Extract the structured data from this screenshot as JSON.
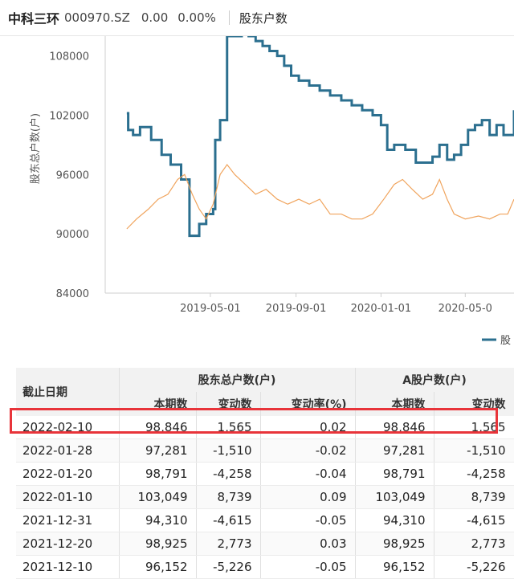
{
  "header": {
    "stock_name": "中科三环",
    "stock_code": "000970.SZ",
    "price": "0.00",
    "change_pct": "0.00%",
    "tab": "股东户数"
  },
  "chart_data": {
    "type": "line",
    "ylabel": "股东总户数(户)",
    "yticks": [
      "108000",
      "102000",
      "96000",
      "90000",
      "84000"
    ],
    "ylim": [
      84000,
      110000
    ],
    "xticks": [
      "2019-05-01",
      "2019-09-01",
      "2020-01-01",
      "2020-05-0"
    ],
    "legend_partial": "股",
    "series": [
      {
        "name": "",
        "color": "#2b6f8f",
        "points": [
          [
            "2019-01-01",
            102200
          ],
          [
            "2019-01-03",
            100500
          ],
          [
            "2019-01-10",
            100000
          ],
          [
            "2019-01-20",
            100800
          ],
          [
            "2019-02-05",
            99500
          ],
          [
            "2019-02-20",
            98000
          ],
          [
            "2019-03-05",
            97000
          ],
          [
            "2019-03-20",
            95500
          ],
          [
            "2019-04-01",
            89800
          ],
          [
            "2019-04-10",
            89800
          ],
          [
            "2019-04-15",
            91000
          ],
          [
            "2019-04-25",
            92000
          ],
          [
            "2019-05-05",
            92500
          ],
          [
            "2019-05-08",
            99500
          ],
          [
            "2019-05-15",
            101500
          ],
          [
            "2019-05-25",
            110000
          ],
          [
            "2019-06-05",
            110000
          ],
          [
            "2019-06-15",
            110500
          ],
          [
            "2019-06-25",
            110000
          ],
          [
            "2019-07-05",
            109500
          ],
          [
            "2019-07-15",
            109000
          ],
          [
            "2019-07-25",
            108500
          ],
          [
            "2019-08-05",
            108000
          ],
          [
            "2019-08-15",
            107000
          ],
          [
            "2019-08-25",
            106000
          ],
          [
            "2019-09-05",
            105500
          ],
          [
            "2019-09-20",
            105000
          ],
          [
            "2019-10-05",
            104500
          ],
          [
            "2019-10-20",
            104000
          ],
          [
            "2019-11-05",
            103500
          ],
          [
            "2019-11-20",
            103000
          ],
          [
            "2019-12-05",
            102500
          ],
          [
            "2019-12-20",
            102000
          ],
          [
            "2020-01-01",
            101000
          ],
          [
            "2020-01-10",
            98500
          ],
          [
            "2020-01-20",
            99000
          ],
          [
            "2020-02-05",
            98500
          ],
          [
            "2020-02-20",
            97200
          ],
          [
            "2020-03-05",
            97200
          ],
          [
            "2020-03-15",
            97800
          ],
          [
            "2020-03-25",
            99000
          ],
          [
            "2020-04-05",
            97500
          ],
          [
            "2020-04-15",
            98000
          ],
          [
            "2020-04-25",
            99000
          ],
          [
            "2020-05-05",
            100500
          ],
          [
            "2020-05-15",
            101000
          ],
          [
            "2020-05-25",
            101500
          ],
          [
            "2020-06-05",
            100000
          ],
          [
            "2020-06-15",
            101000
          ],
          [
            "2020-06-25",
            100000
          ],
          [
            "2020-07-05",
            100000
          ],
          [
            "2020-07-10",
            102500
          ]
        ]
      },
      {
        "name": "",
        "color": "#f0a45d",
        "points": [
          [
            "2019-01-01",
            90500
          ],
          [
            "2019-01-15",
            91500
          ],
          [
            "2019-02-01",
            92500
          ],
          [
            "2019-02-15",
            93500
          ],
          [
            "2019-03-01",
            94000
          ],
          [
            "2019-03-15",
            95500
          ],
          [
            "2019-03-25",
            96000
          ],
          [
            "2019-04-05",
            94000
          ],
          [
            "2019-04-15",
            92500
          ],
          [
            "2019-04-25",
            91500
          ],
          [
            "2019-05-05",
            93000
          ],
          [
            "2019-05-15",
            96000
          ],
          [
            "2019-05-25",
            97000
          ],
          [
            "2019-06-05",
            96000
          ],
          [
            "2019-06-20",
            95000
          ],
          [
            "2019-07-05",
            94000
          ],
          [
            "2019-07-20",
            94500
          ],
          [
            "2019-08-05",
            93500
          ],
          [
            "2019-08-20",
            93000
          ],
          [
            "2019-09-05",
            93500
          ],
          [
            "2019-09-20",
            93000
          ],
          [
            "2019-10-05",
            93500
          ],
          [
            "2019-10-20",
            92000
          ],
          [
            "2019-11-05",
            92000
          ],
          [
            "2019-11-20",
            91500
          ],
          [
            "2019-12-05",
            91500
          ],
          [
            "2019-12-20",
            92000
          ],
          [
            "2020-01-05",
            93500
          ],
          [
            "2020-01-20",
            95000
          ],
          [
            "2020-02-01",
            95500
          ],
          [
            "2020-02-15",
            94500
          ],
          [
            "2020-03-01",
            93500
          ],
          [
            "2020-03-15",
            94000
          ],
          [
            "2020-03-25",
            95500
          ],
          [
            "2020-04-05",
            93500
          ],
          [
            "2020-04-15",
            92000
          ],
          [
            "2020-05-01",
            91500
          ],
          [
            "2020-05-20",
            91800
          ],
          [
            "2020-06-05",
            91500
          ],
          [
            "2020-06-20",
            92000
          ],
          [
            "2020-07-01",
            92000
          ],
          [
            "2020-07-10",
            93500
          ]
        ]
      }
    ]
  },
  "table": {
    "col_date": "截止日期",
    "group_total": "股东总户数(户)",
    "group_a": "A股户数(户)",
    "sub_current": "本期数",
    "sub_change": "变动数",
    "sub_rate": "变动率(%)",
    "rows": [
      {
        "date": "2022-02-10",
        "total": "98,846",
        "change": "1,565",
        "rate": "0.02",
        "a_total": "98,846",
        "a_change": "1,565"
      },
      {
        "date": "2022-01-28",
        "total": "97,281",
        "change": "-1,510",
        "rate": "-0.02",
        "a_total": "97,281",
        "a_change": "-1,510"
      },
      {
        "date": "2022-01-20",
        "total": "98,791",
        "change": "-4,258",
        "rate": "-0.04",
        "a_total": "98,791",
        "a_change": "-4,258"
      },
      {
        "date": "2022-01-10",
        "total": "103,049",
        "change": "8,739",
        "rate": "0.09",
        "a_total": "103,049",
        "a_change": "8,739"
      },
      {
        "date": "2021-12-31",
        "total": "94,310",
        "change": "-4,615",
        "rate": "-0.05",
        "a_total": "94,310",
        "a_change": "-4,615"
      },
      {
        "date": "2021-12-20",
        "total": "98,925",
        "change": "2,773",
        "rate": "0.03",
        "a_total": "98,925",
        "a_change": "2,773"
      },
      {
        "date": "2021-12-10",
        "total": "96,152",
        "change": "-5,226",
        "rate": "-0.05",
        "a_total": "96,152",
        "a_change": "-5,226"
      }
    ]
  },
  "colors": {
    "highlight": "#e8343a"
  }
}
